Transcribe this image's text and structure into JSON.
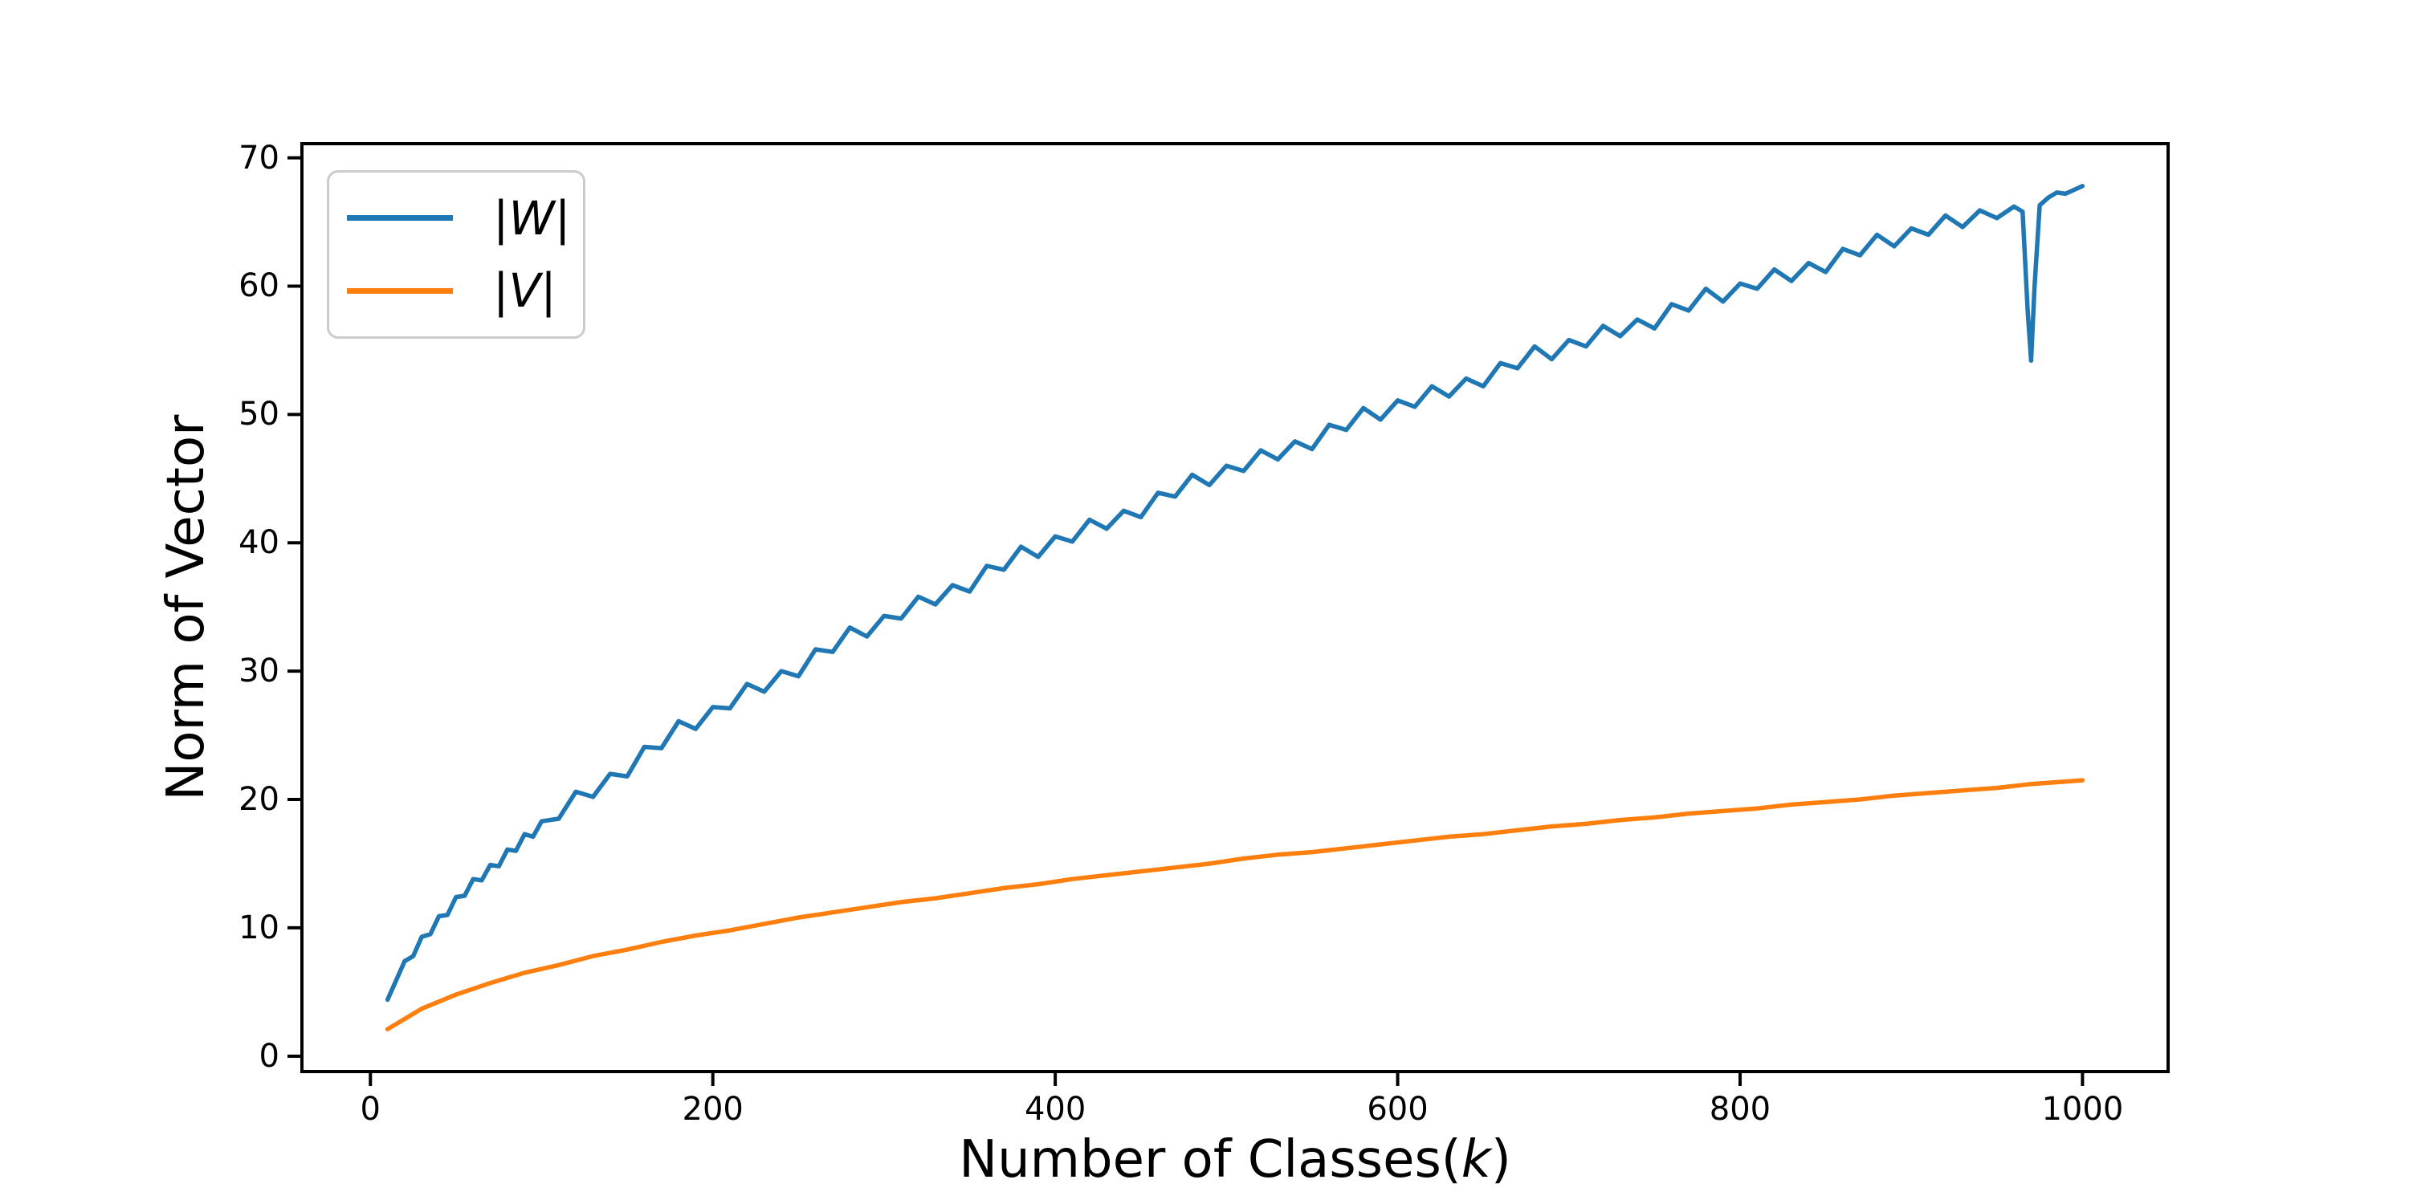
{
  "figure": {
    "background": "#ffffff",
    "xlabel": {
      "prefix": "Number of Classes(",
      "var": "k",
      "suffix": ")"
    },
    "ylabel": "Norm of Vector",
    "legend": {
      "items": [
        {
          "bar": "|",
          "letter": "W",
          "color": "#1f77b4"
        },
        {
          "bar": "|",
          "letter": "V",
          "color": "#ff7f0e"
        }
      ]
    }
  },
  "chart_data": {
    "type": "line",
    "title": "",
    "xlabel": "Number of Classes(k)",
    "ylabel": "Norm of Vector",
    "xlim": [
      -40,
      1050
    ],
    "ylim": [
      -1.2,
      71.1
    ],
    "x_ticks": [
      0,
      200,
      400,
      600,
      800,
      1000
    ],
    "y_ticks": [
      0,
      10,
      20,
      30,
      40,
      50,
      60,
      70
    ],
    "grid": false,
    "legend_position": "upper left",
    "axis_color": "#000000",
    "series": [
      {
        "name": "|W|",
        "color": "#1f77b4",
        "points": [
          [
            10,
            4.4
          ],
          [
            15,
            5.9
          ],
          [
            20,
            7.4
          ],
          [
            25,
            7.8
          ],
          [
            30,
            9.3
          ],
          [
            35,
            9.5
          ],
          [
            40,
            10.9
          ],
          [
            45,
            11.0
          ],
          [
            50,
            12.4
          ],
          [
            55,
            12.5
          ],
          [
            60,
            13.8
          ],
          [
            65,
            13.7
          ],
          [
            70,
            14.9
          ],
          [
            75,
            14.8
          ],
          [
            80,
            16.1
          ],
          [
            85,
            16.0
          ],
          [
            90,
            17.3
          ],
          [
            95,
            17.1
          ],
          [
            100,
            18.3
          ],
          [
            110,
            18.5
          ],
          [
            120,
            20.6
          ],
          [
            130,
            20.2
          ],
          [
            140,
            22.0
          ],
          [
            150,
            21.8
          ],
          [
            160,
            24.1
          ],
          [
            170,
            24.0
          ],
          [
            180,
            26.1
          ],
          [
            190,
            25.5
          ],
          [
            200,
            27.2
          ],
          [
            210,
            27.1
          ],
          [
            220,
            29.0
          ],
          [
            230,
            28.4
          ],
          [
            240,
            30.0
          ],
          [
            250,
            29.6
          ],
          [
            260,
            31.7
          ],
          [
            270,
            31.5
          ],
          [
            280,
            33.4
          ],
          [
            290,
            32.7
          ],
          [
            300,
            34.3
          ],
          [
            310,
            34.1
          ],
          [
            320,
            35.8
          ],
          [
            330,
            35.2
          ],
          [
            340,
            36.7
          ],
          [
            350,
            36.2
          ],
          [
            360,
            38.2
          ],
          [
            370,
            37.9
          ],
          [
            380,
            39.7
          ],
          [
            390,
            38.9
          ],
          [
            400,
            40.5
          ],
          [
            410,
            40.1
          ],
          [
            420,
            41.8
          ],
          [
            430,
            41.1
          ],
          [
            440,
            42.5
          ],
          [
            450,
            42.0
          ],
          [
            460,
            43.9
          ],
          [
            470,
            43.6
          ],
          [
            480,
            45.3
          ],
          [
            490,
            44.5
          ],
          [
            500,
            46.0
          ],
          [
            510,
            45.6
          ],
          [
            520,
            47.2
          ],
          [
            530,
            46.5
          ],
          [
            540,
            47.9
          ],
          [
            550,
            47.3
          ],
          [
            560,
            49.2
          ],
          [
            570,
            48.8
          ],
          [
            580,
            50.5
          ],
          [
            590,
            49.6
          ],
          [
            600,
            51.1
          ],
          [
            610,
            50.6
          ],
          [
            620,
            52.2
          ],
          [
            630,
            51.4
          ],
          [
            640,
            52.8
          ],
          [
            650,
            52.2
          ],
          [
            660,
            54.0
          ],
          [
            670,
            53.6
          ],
          [
            680,
            55.3
          ],
          [
            690,
            54.3
          ],
          [
            700,
            55.8
          ],
          [
            710,
            55.3
          ],
          [
            720,
            56.9
          ],
          [
            730,
            56.1
          ],
          [
            740,
            57.4
          ],
          [
            750,
            56.7
          ],
          [
            760,
            58.6
          ],
          [
            770,
            58.1
          ],
          [
            780,
            59.8
          ],
          [
            790,
            58.8
          ],
          [
            800,
            60.2
          ],
          [
            810,
            59.8
          ],
          [
            820,
            61.3
          ],
          [
            830,
            60.4
          ],
          [
            840,
            61.8
          ],
          [
            850,
            61.1
          ],
          [
            860,
            62.9
          ],
          [
            870,
            62.4
          ],
          [
            880,
            64.0
          ],
          [
            890,
            63.1
          ],
          [
            900,
            64.5
          ],
          [
            910,
            64.0
          ],
          [
            920,
            65.5
          ],
          [
            930,
            64.6
          ],
          [
            940,
            65.9
          ],
          [
            950,
            65.3
          ],
          [
            960,
            66.2
          ],
          [
            965,
            65.8
          ],
          [
            968,
            58.0
          ],
          [
            970,
            54.2
          ],
          [
            972,
            60.0
          ],
          [
            975,
            66.3
          ],
          [
            980,
            66.9
          ],
          [
            985,
            67.3
          ],
          [
            990,
            67.2
          ],
          [
            995,
            67.5
          ],
          [
            1000,
            67.8
          ]
        ]
      },
      {
        "name": "|V|",
        "color": "#ff7f0e",
        "points": [
          [
            10,
            2.1
          ],
          [
            30,
            3.7
          ],
          [
            50,
            4.8
          ],
          [
            70,
            5.7
          ],
          [
            90,
            6.5
          ],
          [
            110,
            7.1
          ],
          [
            130,
            7.8
          ],
          [
            150,
            8.3
          ],
          [
            170,
            8.9
          ],
          [
            190,
            9.4
          ],
          [
            210,
            9.8
          ],
          [
            230,
            10.3
          ],
          [
            250,
            10.8
          ],
          [
            270,
            11.2
          ],
          [
            290,
            11.6
          ],
          [
            310,
            12.0
          ],
          [
            330,
            12.3
          ],
          [
            350,
            12.7
          ],
          [
            370,
            13.1
          ],
          [
            390,
            13.4
          ],
          [
            410,
            13.8
          ],
          [
            430,
            14.1
          ],
          [
            450,
            14.4
          ],
          [
            470,
            14.7
          ],
          [
            490,
            15.0
          ],
          [
            510,
            15.4
          ],
          [
            530,
            15.7
          ],
          [
            550,
            15.9
          ],
          [
            570,
            16.2
          ],
          [
            590,
            16.5
          ],
          [
            610,
            16.8
          ],
          [
            630,
            17.1
          ],
          [
            650,
            17.3
          ],
          [
            670,
            17.6
          ],
          [
            690,
            17.9
          ],
          [
            710,
            18.1
          ],
          [
            730,
            18.4
          ],
          [
            750,
            18.6
          ],
          [
            770,
            18.9
          ],
          [
            790,
            19.1
          ],
          [
            810,
            19.3
          ],
          [
            830,
            19.6
          ],
          [
            850,
            19.8
          ],
          [
            870,
            20.0
          ],
          [
            890,
            20.3
          ],
          [
            910,
            20.5
          ],
          [
            930,
            20.7
          ],
          [
            950,
            20.9
          ],
          [
            970,
            21.2
          ],
          [
            990,
            21.4
          ],
          [
            1000,
            21.5
          ]
        ]
      }
    ]
  }
}
